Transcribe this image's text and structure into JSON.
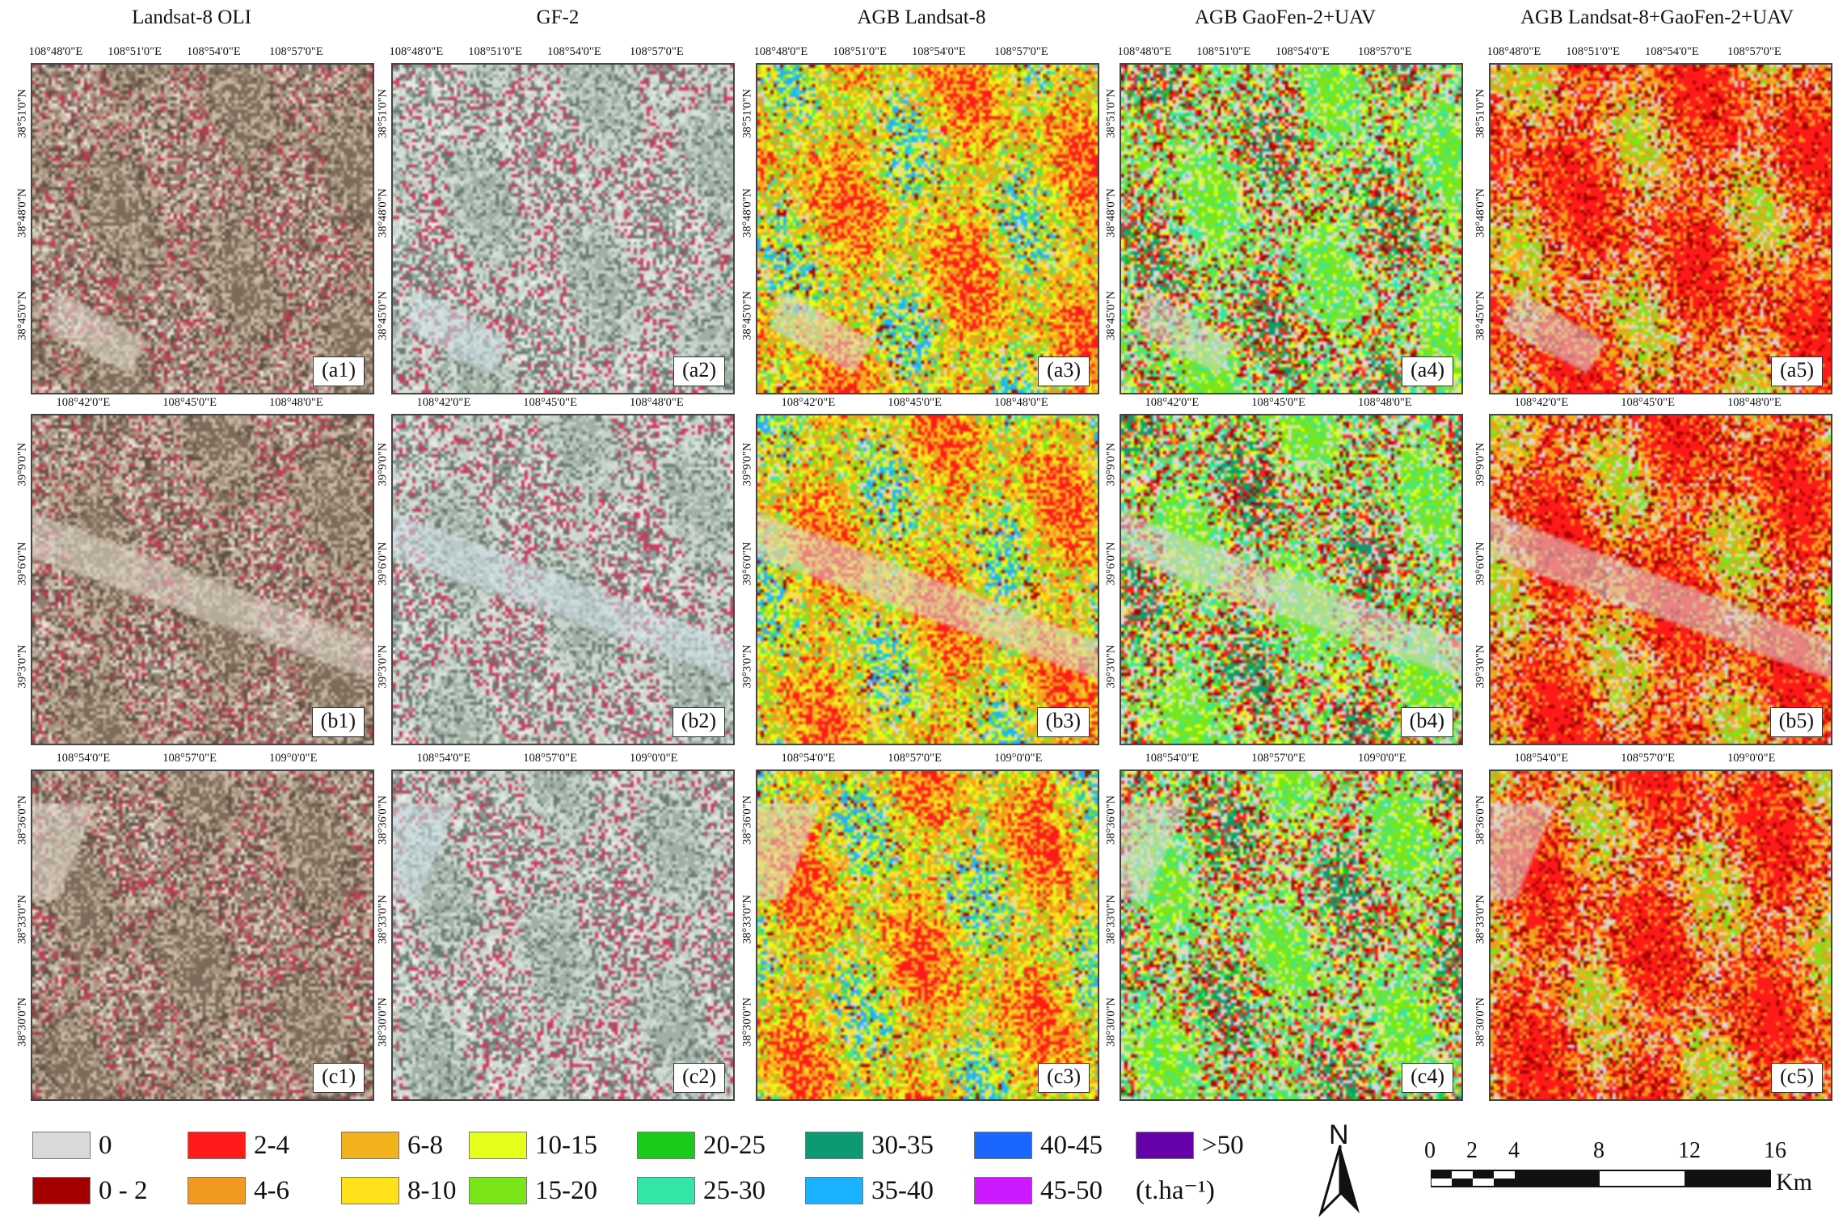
{
  "columns": [
    {
      "title": "Landsat-8 OLI",
      "kind": "landsat"
    },
    {
      "title": "GF-2",
      "kind": "gf2"
    },
    {
      "title": "AGB Landsat-8",
      "kind": "agb_l8"
    },
    {
      "title": "AGB GaoFen-2+UAV",
      "kind": "agb_gf2"
    },
    {
      "title": "AGB Landsat-8+GaoFen-2+UAV",
      "kind": "agb_fused"
    }
  ],
  "rows": [
    {
      "id": "a",
      "lon_ticks": [
        "108°48'0\"E",
        "108°51'0\"E",
        "108°54'0\"E",
        "108°57'0\"E"
      ],
      "lat_ticks": [
        "38°51'0\"N",
        "38°48'0\"N",
        "38°45'0\"N"
      ]
    },
    {
      "id": "b",
      "lon_ticks": [
        "108°42'0\"E",
        "108°45'0\"E",
        "108°48'0\"E"
      ],
      "lat_ticks": [
        "39°9'0\"N",
        "39°6'0\"N",
        "39°3'0\"N"
      ]
    },
    {
      "id": "c",
      "lon_ticks": [
        "108°54'0\"E",
        "108°57'0\"E",
        "109°0'0\"E"
      ],
      "lat_ticks": [
        "38°36'0\"N",
        "38°33'0\"N",
        "38°30'0\"N"
      ]
    }
  ],
  "panel_labels": [
    [
      "(a1)",
      "(a2)",
      "(a3)",
      "(a4)",
      "(a5)"
    ],
    [
      "(b1)",
      "(b2)",
      "(b3)",
      "(b4)",
      "(b5)"
    ],
    [
      "(c1)",
      "(c2)",
      "(c3)",
      "(c4)",
      "(c5)"
    ]
  ],
  "legend": {
    "unit": "(t.ha⁻¹)",
    "classes": [
      {
        "label": "0",
        "color": "#d9d9d9"
      },
      {
        "label": "0 - 2",
        "color": "#a50000"
      },
      {
        "label": "2-4",
        "color": "#ff1a1a"
      },
      {
        "label": "4-6",
        "color": "#f29a1f"
      },
      {
        "label": "6-8",
        "color": "#f2b21c"
      },
      {
        "label": "8-10",
        "color": "#ffe11a"
      },
      {
        "label": "10-15",
        "color": "#e6ff1a"
      },
      {
        "label": "15-20",
        "color": "#7ae619"
      },
      {
        "label": "20-25",
        "color": "#19cc19"
      },
      {
        "label": "25-30",
        "color": "#33e6a6"
      },
      {
        "label": "30-35",
        "color": "#0d9973"
      },
      {
        "label": "35-40",
        "color": "#1ab2ff"
      },
      {
        "label": "40-45",
        "color": "#1a66ff"
      },
      {
        "label": "45-50",
        "color": "#cc19ff"
      },
      {
        "label": ">50",
        "color": "#6600a8"
      }
    ]
  },
  "north_arrow": {
    "letter": "N"
  },
  "scale_bar": {
    "ticks": [
      "0",
      "2",
      "4",
      "8",
      "12",
      "16"
    ],
    "unit": "Km"
  }
}
